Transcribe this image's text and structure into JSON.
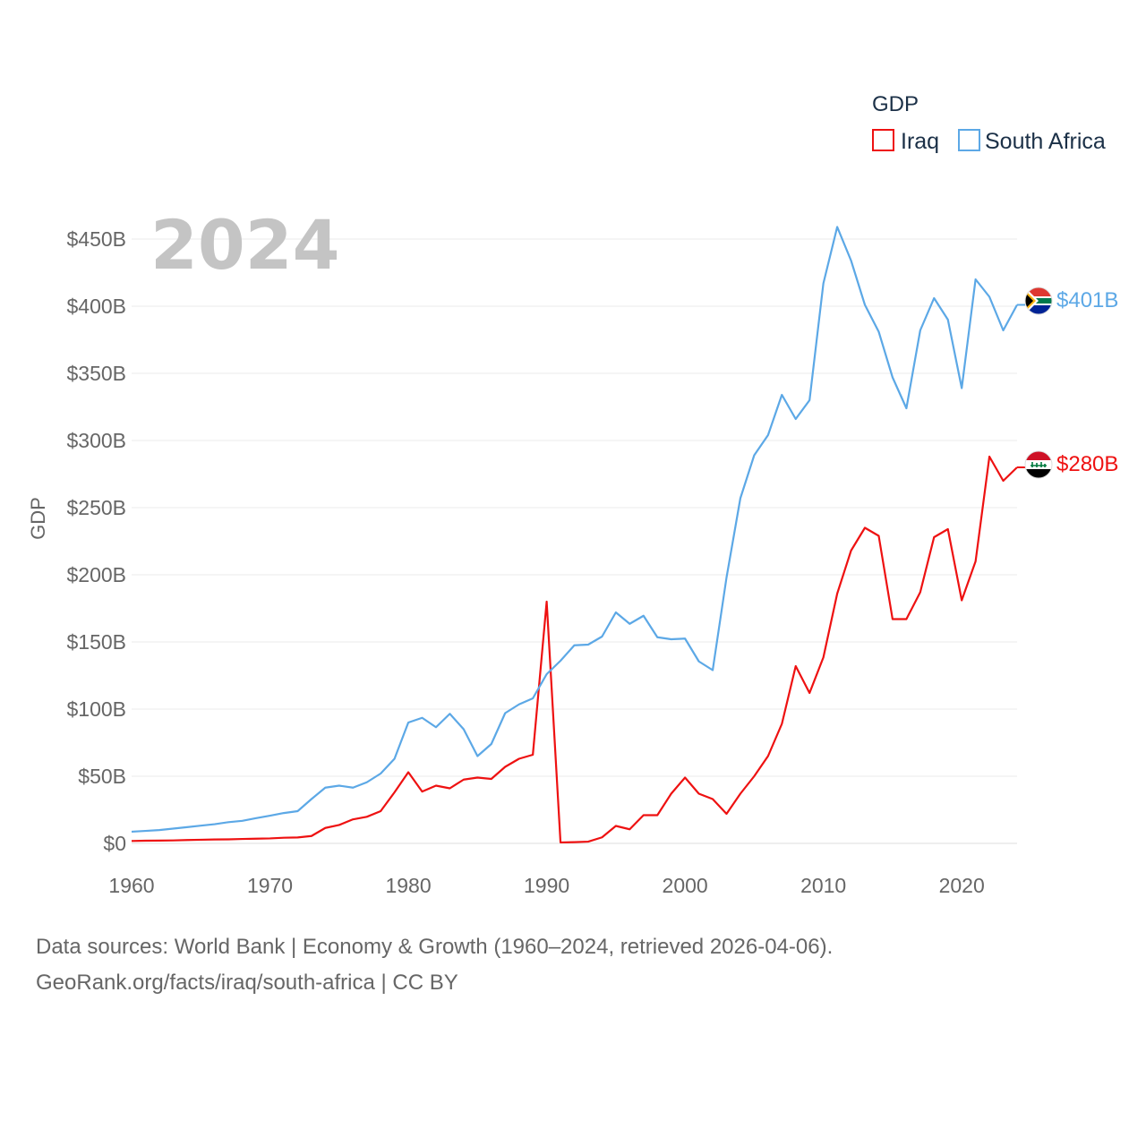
{
  "chart_data": {
    "type": "line",
    "year_label": "2024",
    "ylabel": "GDP",
    "legend": {
      "title": "GDP",
      "entries": [
        "Iraq",
        "South Africa"
      ]
    },
    "xlim": [
      1960,
      2024
    ],
    "ylim": [
      0,
      460
    ],
    "unit": "billions USD",
    "y_ticks": [
      0,
      50,
      100,
      150,
      200,
      250,
      300,
      350,
      400,
      450
    ],
    "y_tick_labels": [
      "$0",
      "$50B",
      "$100B",
      "$150B",
      "$200B",
      "$250B",
      "$300B",
      "$350B",
      "$400B",
      "$450B"
    ],
    "x_ticks": [
      1960,
      1970,
      1980,
      1990,
      2000,
      2010,
      2020
    ],
    "x_tick_labels": [
      "1960",
      "1970",
      "1980",
      "1990",
      "2000",
      "2010",
      "2020"
    ],
    "x": [
      1960,
      1961,
      1962,
      1963,
      1964,
      1965,
      1966,
      1967,
      1968,
      1969,
      1970,
      1971,
      1972,
      1973,
      1974,
      1975,
      1976,
      1977,
      1978,
      1979,
      1980,
      1981,
      1982,
      1983,
      1984,
      1985,
      1986,
      1987,
      1988,
      1989,
      1990,
      1991,
      1992,
      1993,
      1994,
      1995,
      1996,
      1997,
      1998,
      1999,
      2000,
      2001,
      2002,
      2003,
      2004,
      2005,
      2006,
      2007,
      2008,
      2009,
      2010,
      2011,
      2012,
      2013,
      2014,
      2015,
      2016,
      2017,
      2018,
      2019,
      2020,
      2021,
      2022,
      2023,
      2024
    ],
    "series": [
      {
        "name": "Iraq",
        "color": "#ee1111",
        "end_label": "$280B",
        "values": [
          1.8,
          2.0,
          2.1,
          2.2,
          2.5,
          2.7,
          2.9,
          3.0,
          3.3,
          3.5,
          3.7,
          4.2,
          4.4,
          5.5,
          11.5,
          13.7,
          17.9,
          19.8,
          24.0,
          38.0,
          53.0,
          38.6,
          43.0,
          41.0,
          47.5,
          49.0,
          48.0,
          57.0,
          63.0,
          66.0,
          180.0,
          0.7,
          0.9,
          1.3,
          4.5,
          13.0,
          10.5,
          21.0,
          21.0,
          37.0,
          49.0,
          37.0,
          33.0,
          22.0,
          37.0,
          50.0,
          65.0,
          89.0,
          132.0,
          112.0,
          138.5,
          186.0,
          218.0,
          235.0,
          229.0,
          167.0,
          167.0,
          187.0,
          228.0,
          234.0,
          181.0,
          210.0,
          288.0,
          270.0,
          280.0
        ]
      },
      {
        "name": "South Africa",
        "color": "#5ca8e6",
        "end_label": "$401B",
        "values": [
          8.7,
          9.3,
          9.9,
          11.0,
          12.1,
          13.2,
          14.3,
          15.8,
          16.8,
          18.8,
          20.6,
          22.6,
          24.0,
          33.0,
          41.5,
          43.0,
          41.5,
          45.5,
          52.0,
          63.0,
          90.0,
          93.5,
          86.5,
          96.5,
          85.0,
          65.0,
          74.0,
          97.0,
          103.5,
          108.0,
          126.0,
          136.0,
          147.5,
          148.0,
          154.0,
          172.0,
          163.5,
          169.5,
          153.5,
          152.0,
          152.5,
          135.5,
          129.0,
          198.0,
          257.0,
          289.0,
          304.0,
          334.0,
          316.0,
          330.0,
          417.0,
          459.0,
          434.0,
          401.0,
          381.0,
          347.0,
          324.0,
          382.0,
          406.0,
          390.0,
          339.0,
          420.0,
          407.0,
          382.0,
          401.0
        ]
      }
    ]
  },
  "footer": {
    "line1": "Data sources: World Bank | Economy & Growth (1960–2024, retrieved 2026-04-06).",
    "line2": "GeoRank.org/facts/iraq/south-africa | CC BY"
  },
  "icons": {
    "iraq_end": "iraq-flag-icon",
    "south_africa_end": "south-africa-flag-icon"
  }
}
